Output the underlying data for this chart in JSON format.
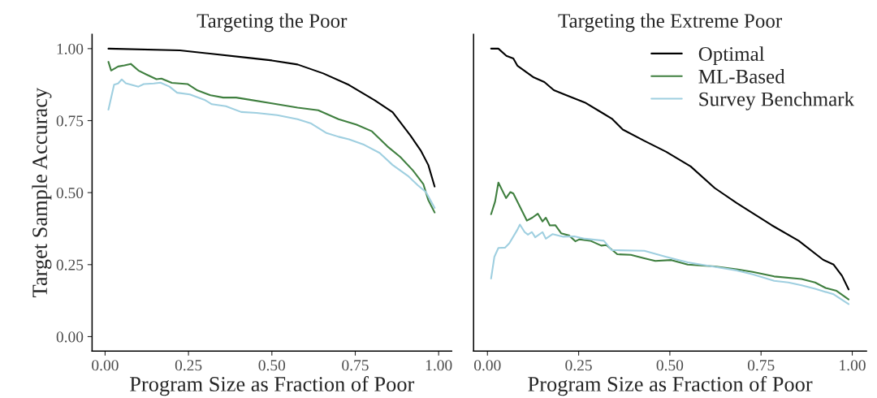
{
  "chart_data": [
    {
      "type": "line",
      "title": "Targeting the Poor",
      "xlabel": "Program Size as Fraction of Poor",
      "ylabel": "Target Sample Accuracy",
      "xlim": [
        -0.039,
        1.039
      ],
      "ylim": [
        -0.05,
        1.05
      ],
      "xticks": [
        {
          "value": 0,
          "label": "0.00"
        },
        {
          "value": 0.25,
          "label": "0.25"
        },
        {
          "value": 0.5,
          "label": "0.50"
        },
        {
          "value": 0.75,
          "label": "0.75"
        },
        {
          "value": 1,
          "label": "1.00"
        }
      ],
      "yticks": [
        {
          "value": 0,
          "label": "0.00"
        },
        {
          "value": 0.25,
          "label": "0.25"
        },
        {
          "value": 0.5,
          "label": "0.50"
        },
        {
          "value": 0.75,
          "label": "0.75"
        },
        {
          "value": 1,
          "label": "1.00"
        }
      ],
      "grid": false,
      "legend": false,
      "line_style": "solid",
      "marker": "none",
      "series": [
        {
          "color": "#000000",
          "x": [
            0.01,
            0.224,
            0.423,
            0.5,
            0.577,
            0.654,
            0.731,
            0.808,
            0.862,
            0.915,
            0.946,
            0.969,
            0.988
          ],
          "values": [
            1.0,
            0.994,
            0.969,
            0.959,
            0.945,
            0.914,
            0.874,
            0.821,
            0.779,
            0.699,
            0.647,
            0.596,
            0.521
          ]
        },
        {
          "color": "#3f7f3f",
          "x": [
            0.01,
            0.018,
            0.039,
            0.058,
            0.077,
            0.1,
            0.124,
            0.154,
            0.169,
            0.2,
            0.247,
            0.277,
            0.316,
            0.354,
            0.393,
            0.431,
            0.5,
            0.577,
            0.639,
            0.7,
            0.754,
            0.8,
            0.846,
            0.885,
            0.923,
            0.954,
            0.969,
            0.988
          ],
          "values": [
            0.954,
            0.924,
            0.938,
            0.942,
            0.947,
            0.924,
            0.91,
            0.894,
            0.896,
            0.881,
            0.877,
            0.855,
            0.838,
            0.83,
            0.83,
            0.823,
            0.81,
            0.795,
            0.786,
            0.755,
            0.736,
            0.713,
            0.661,
            0.624,
            0.577,
            0.53,
            0.474,
            0.431
          ]
        },
        {
          "color": "#9fcfe0",
          "x": [
            0.01,
            0.027,
            0.039,
            0.05,
            0.062,
            0.1,
            0.116,
            0.146,
            0.166,
            0.193,
            0.216,
            0.254,
            0.3,
            0.32,
            0.362,
            0.408,
            0.454,
            0.516,
            0.577,
            0.616,
            0.662,
            0.7,
            0.731,
            0.777,
            0.823,
            0.862,
            0.908,
            0.938,
            0.962,
            0.988
          ],
          "values": [
            0.788,
            0.875,
            0.879,
            0.893,
            0.88,
            0.868,
            0.877,
            0.879,
            0.882,
            0.868,
            0.847,
            0.841,
            0.821,
            0.807,
            0.8,
            0.78,
            0.777,
            0.769,
            0.755,
            0.741,
            0.708,
            0.694,
            0.685,
            0.666,
            0.638,
            0.596,
            0.558,
            0.525,
            0.502,
            0.447
          ]
        }
      ]
    },
    {
      "type": "line",
      "title": "Targeting the Extreme Poor",
      "xlabel": "Program Size as Fraction of Poor",
      "xlim": [
        -0.038,
        1.039
      ],
      "ylim": [
        -0.05,
        1.05
      ],
      "xticks": [
        {
          "value": 0,
          "label": "0.00"
        },
        {
          "value": 0.25,
          "label": "0.25"
        },
        {
          "value": 0.5,
          "label": "0.50"
        },
        {
          "value": 0.75,
          "label": "0.75"
        },
        {
          "value": 1,
          "label": "1.00"
        }
      ],
      "tick_labels": "x",
      "grid": false,
      "legend": "top right",
      "line_style": "solid",
      "marker": "none",
      "series": [
        {
          "name": "Optimal",
          "color": "#000000",
          "x": [
            0.01,
            0.03,
            0.052,
            0.071,
            0.082,
            0.127,
            0.156,
            0.182,
            0.215,
            0.267,
            0.312,
            0.341,
            0.371,
            0.43,
            0.49,
            0.557,
            0.623,
            0.683,
            0.742,
            0.779,
            0.853,
            0.92,
            0.949,
            0.972,
            0.99
          ],
          "values": [
            1.0,
            1.0,
            0.975,
            0.966,
            0.941,
            0.9,
            0.884,
            0.856,
            0.839,
            0.813,
            0.779,
            0.757,
            0.719,
            0.68,
            0.642,
            0.591,
            0.516,
            0.464,
            0.417,
            0.387,
            0.333,
            0.267,
            0.25,
            0.211,
            0.164
          ]
        },
        {
          "name": "ML-Based",
          "color": "#3f7f3f",
          "x": [
            0.01,
            0.021,
            0.03,
            0.051,
            0.063,
            0.071,
            0.108,
            0.123,
            0.138,
            0.151,
            0.16,
            0.171,
            0.186,
            0.202,
            0.223,
            0.241,
            0.252,
            0.282,
            0.312,
            0.326,
            0.356,
            0.393,
            0.43,
            0.46,
            0.504,
            0.549,
            0.623,
            0.683,
            0.727,
            0.786,
            0.861,
            0.898,
            0.927,
            0.957,
            0.99
          ],
          "values": [
            0.425,
            0.469,
            0.535,
            0.481,
            0.502,
            0.497,
            0.403,
            0.413,
            0.427,
            0.4,
            0.413,
            0.386,
            0.387,
            0.359,
            0.352,
            0.331,
            0.338,
            0.333,
            0.316,
            0.318,
            0.286,
            0.284,
            0.272,
            0.263,
            0.266,
            0.25,
            0.244,
            0.234,
            0.225,
            0.209,
            0.2,
            0.188,
            0.169,
            0.159,
            0.129
          ]
        },
        {
          "name": "Survey Benchmark",
          "color": "#9fcfe0",
          "x": [
            0.01,
            0.019,
            0.03,
            0.048,
            0.06,
            0.082,
            0.089,
            0.102,
            0.111,
            0.122,
            0.131,
            0.151,
            0.16,
            0.179,
            0.208,
            0.238,
            0.267,
            0.319,
            0.341,
            0.356,
            0.43,
            0.49,
            0.549,
            0.616,
            0.683,
            0.727,
            0.786,
            0.825,
            0.861,
            0.898,
            0.949,
            0.99
          ],
          "values": [
            0.202,
            0.277,
            0.308,
            0.309,
            0.324,
            0.371,
            0.389,
            0.363,
            0.354,
            0.363,
            0.345,
            0.363,
            0.34,
            0.356,
            0.347,
            0.348,
            0.34,
            0.333,
            0.3,
            0.3,
            0.298,
            0.277,
            0.258,
            0.244,
            0.23,
            0.216,
            0.194,
            0.188,
            0.178,
            0.166,
            0.147,
            0.113
          ]
        }
      ]
    }
  ]
}
